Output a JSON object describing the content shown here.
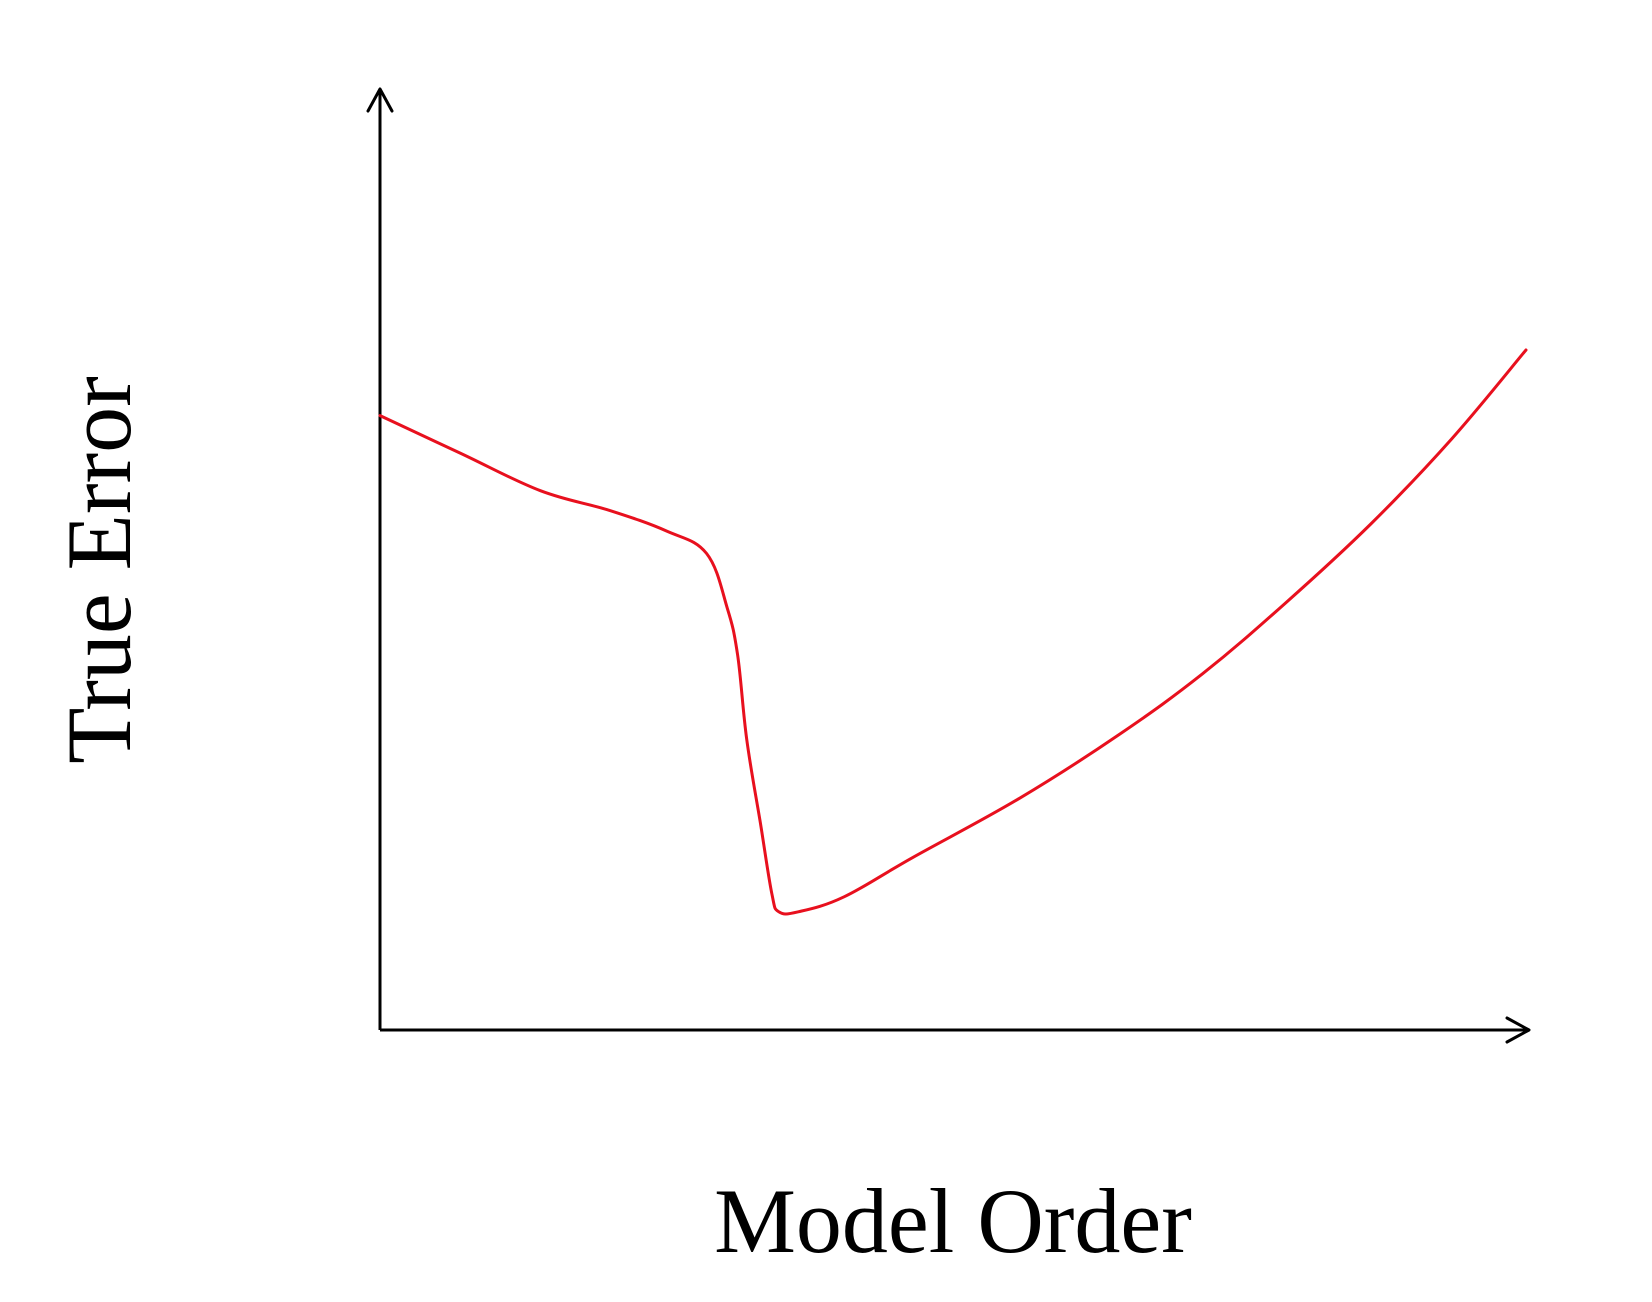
{
  "chart_data": {
    "type": "line",
    "title": "",
    "xlabel": "Model Order",
    "ylabel": "True Error",
    "xlim": [
      0,
      100
    ],
    "ylim": [
      0,
      100
    ],
    "grid": false,
    "legend": "none",
    "ticks": "none",
    "colors": {
      "axes": "#000000",
      "curve": "#e8101e"
    },
    "series": [
      {
        "points": [
          [
            0,
            65.5
          ],
          [
            7,
            61.5
          ],
          [
            14,
            57.5
          ],
          [
            20,
            55.4
          ],
          [
            25,
            53.2
          ],
          [
            28.5,
            50.8
          ],
          [
            30.3,
            45.0
          ],
          [
            31.2,
            40.0
          ],
          [
            32.0,
            31.0
          ],
          [
            33.2,
            22.0
          ],
          [
            34.2,
            14.5
          ],
          [
            34.8,
            12.6
          ],
          [
            36.5,
            12.6
          ],
          [
            40.5,
            14.2
          ],
          [
            46.5,
            18.4
          ],
          [
            55.8,
            24.7
          ],
          [
            64.5,
            31.5
          ],
          [
            71.8,
            38.0
          ],
          [
            79,
            45.5
          ],
          [
            86.5,
            54.0
          ],
          [
            93.5,
            63.0
          ],
          [
            100,
            72.5
          ]
        ]
      }
    ]
  }
}
